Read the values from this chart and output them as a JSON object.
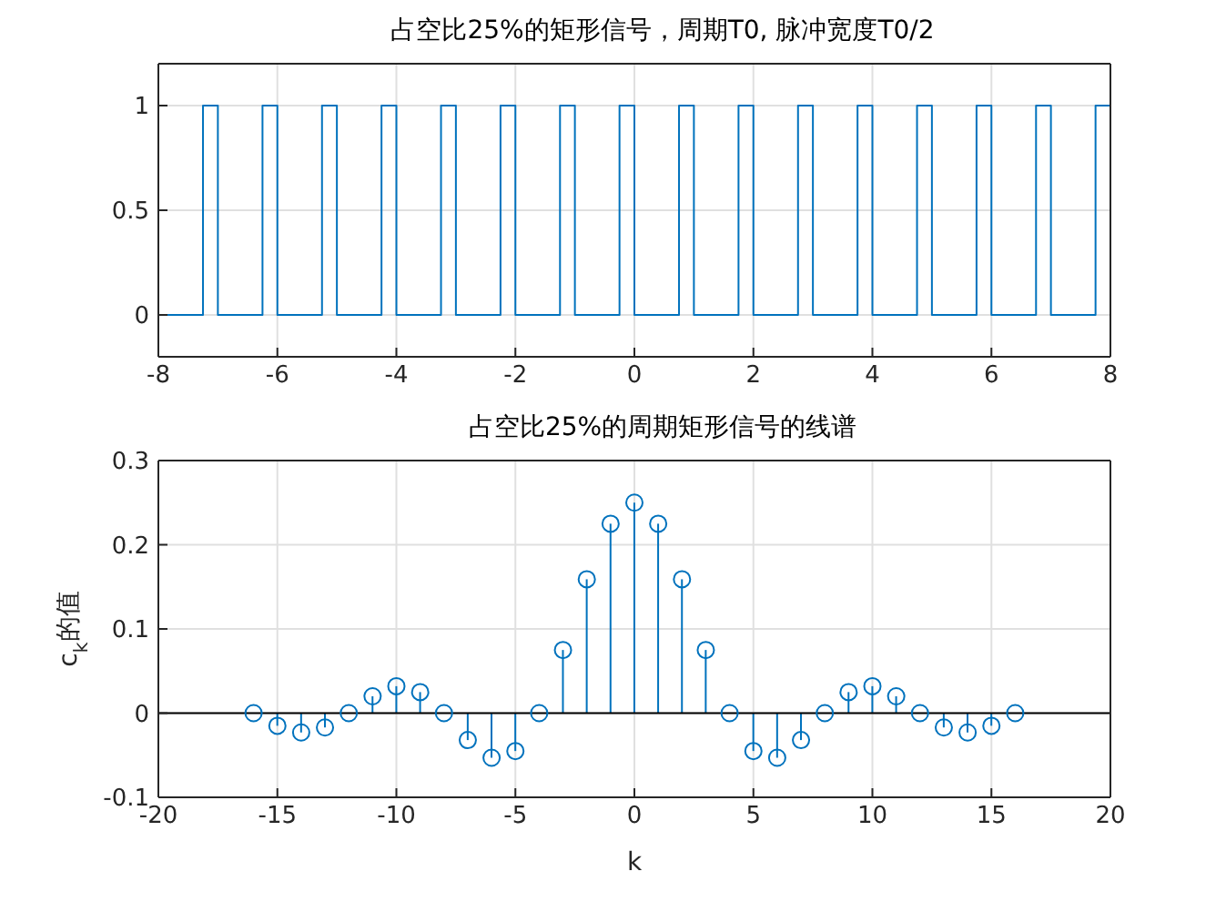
{
  "chart_data": [
    {
      "type": "step",
      "title": "占空比25%的矩形信号，周期T0, 脉冲宽度T0/2",
      "color": "#0072bd",
      "x": [
        -8,
        -7.25,
        -7,
        -6.25,
        -6,
        -5.25,
        -5,
        -4.25,
        -4,
        -3.25,
        -3,
        -2.25,
        -2,
        -1.25,
        -1,
        -0.25,
        0,
        0.75,
        1,
        1.75,
        2,
        2.75,
        3,
        3.75,
        4,
        4.75,
        5,
        5.75,
        6,
        6.75,
        7,
        7.75,
        8
      ],
      "values": [
        0,
        1,
        0,
        1,
        0,
        1,
        0,
        1,
        0,
        1,
        0,
        1,
        0,
        1,
        0,
        1,
        0,
        1,
        0,
        1,
        0,
        1,
        0,
        1,
        0,
        1,
        0,
        1,
        0,
        1,
        0,
        1,
        1
      ],
      "xlim": [
        -8,
        8
      ],
      "xticks": [
        -8,
        -6,
        -4,
        -2,
        0,
        2,
        4,
        6,
        8
      ],
      "ylim": [
        -0.2,
        1.2
      ],
      "yticks": [
        0,
        0.5,
        1
      ],
      "grid": true
    },
    {
      "type": "lollipop",
      "title": "占空比25%的周期矩形信号的线谱",
      "xlabel": "k",
      "ylabel": "c$_{k}$的值",
      "color": "#0072bd",
      "marker": "circle",
      "x": [
        -16,
        -15,
        -14,
        -13,
        -12,
        -11,
        -10,
        -9,
        -8,
        -7,
        -6,
        -5,
        -4,
        -3,
        -2,
        -1,
        0,
        1,
        2,
        3,
        4,
        5,
        6,
        7,
        8,
        9,
        10,
        11,
        12,
        13,
        14,
        15,
        16
      ],
      "values": [
        0,
        -0.015,
        -0.023,
        -0.017,
        0,
        0.02,
        0.032,
        0.025,
        0,
        -0.032,
        -0.053,
        -0.045,
        0,
        0.075,
        0.159,
        0.225,
        0.25,
        0.225,
        0.159,
        0.075,
        0,
        -0.045,
        -0.053,
        -0.032,
        0,
        0.025,
        0.032,
        0.02,
        0,
        -0.017,
        -0.023,
        -0.015,
        0
      ],
      "ref_lines": [
        {
          "axis": "y",
          "value": 0,
          "color": "#000000"
        }
      ],
      "xlim": [
        -20,
        20
      ],
      "xticks": [
        -20,
        -15,
        -10,
        -5,
        0,
        5,
        10,
        15,
        20
      ],
      "ylim": [
        -0.1,
        0.3
      ],
      "yticks": [
        -0.1,
        0,
        0.1,
        0.2,
        0.3
      ],
      "grid": true
    }
  ]
}
